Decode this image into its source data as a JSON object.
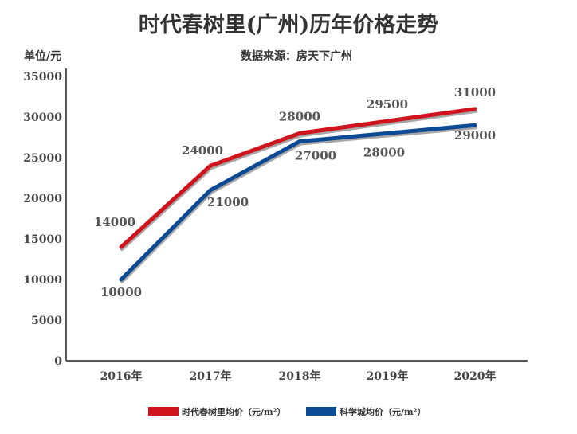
{
  "chart_data": {
    "type": "line",
    "title": "时代春树里(广州)历年价格走势",
    "subtitle": "数据来源：房天下广州",
    "ylabel": "单位/元",
    "xlabel": "",
    "categories": [
      "2016年",
      "2017年",
      "2018年",
      "2019年",
      "2020年"
    ],
    "ylim": [
      0,
      35000
    ],
    "yticks": [
      "0",
      "5000",
      "10000",
      "15000",
      "20000",
      "25000",
      "30000",
      "35000"
    ],
    "grid": false,
    "legend_position": "bottom",
    "series": [
      {
        "name": "时代春树里均价（元/m²）",
        "values": [
          14000,
          24000,
          28000,
          29500,
          31000
        ],
        "labels": [
          "14000",
          "24000",
          "28000",
          "29500",
          "31000"
        ],
        "color": "#d0141e"
      },
      {
        "name": "科学城均价（元/m²）",
        "values": [
          10000,
          21000,
          27000,
          28000,
          29000
        ],
        "labels": [
          "10000",
          "21000",
          "27000",
          "28000",
          "29000"
        ],
        "color": "#0d4a94"
      }
    ]
  }
}
